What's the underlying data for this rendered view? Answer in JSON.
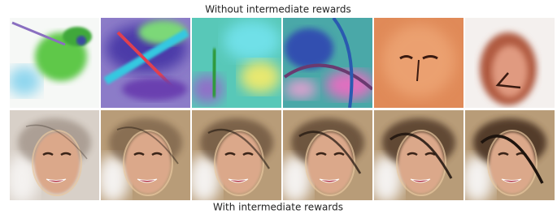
{
  "captions": {
    "top": "Without intermediate rewards",
    "bottom": "With intermediate rewards"
  }
}
